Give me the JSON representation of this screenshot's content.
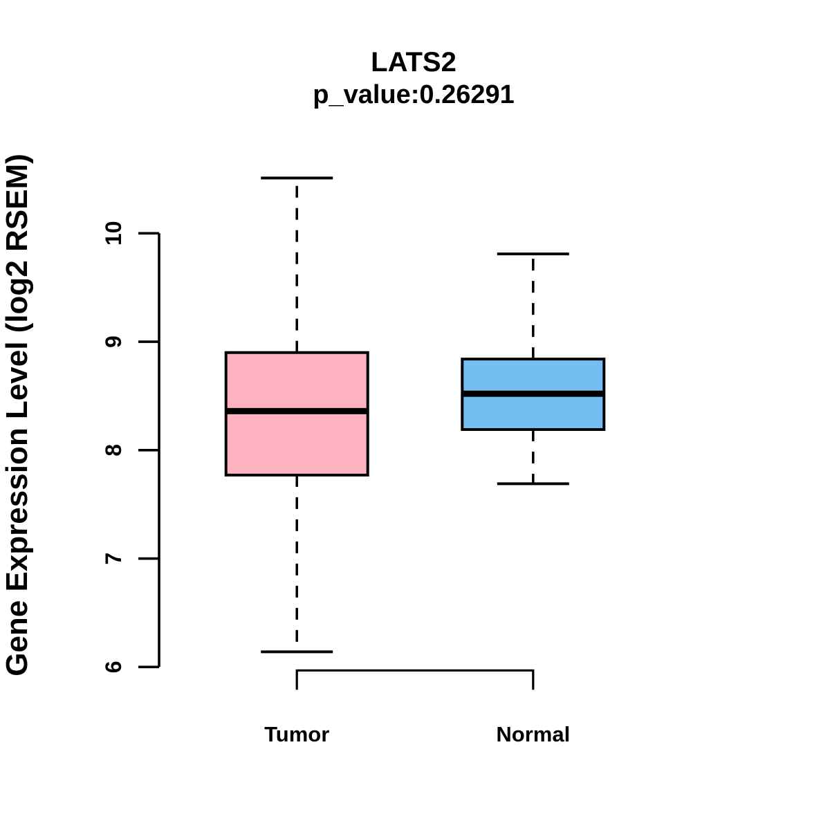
{
  "title": "LATS2",
  "subtitle": "p_value:0.26291",
  "ylabel": "Gene Expression Level (log2 RSEM)",
  "chart_data": {
    "type": "boxplot",
    "title": "LATS2",
    "subtitle": "p_value:0.26291",
    "ylabel": "Gene Expression Level (log2 RSEM)",
    "xlabel": "",
    "categories": [
      "Tumor",
      "Normal"
    ],
    "series": [
      {
        "name": "Tumor",
        "lower_whisker": 6.14,
        "q1": 7.77,
        "median": 8.36,
        "q3": 8.9,
        "upper_whisker": 10.51,
        "fill": "#FFB3C1"
      },
      {
        "name": "Normal",
        "lower_whisker": 7.69,
        "q1": 8.19,
        "median": 8.52,
        "q3": 8.84,
        "upper_whisker": 9.81,
        "fill": "#74BFF2"
      }
    ],
    "yticks": [
      6,
      7,
      8,
      9,
      10
    ],
    "ylim": [
      5.9,
      10.6
    ],
    "grid": false,
    "legend": "none",
    "colors": {
      "box_border": "#000000",
      "median_line": "#000000",
      "whisker_line": "#000000",
      "axis_line": "#000000",
      "background": "#ffffff"
    }
  }
}
